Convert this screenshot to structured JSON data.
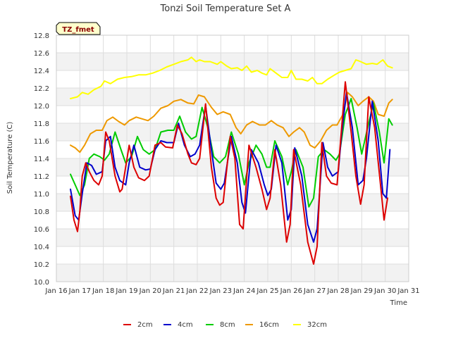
{
  "chart_data": {
    "type": "line",
    "title": "Tonzi Soil Temperature Set A",
    "xlabel": "Time",
    "ylabel": "Soil Temperature (C)",
    "annotation": "TZ_fmet",
    "xlim": [
      16,
      31
    ],
    "ylim": [
      10.0,
      12.8
    ],
    "x_ticks": [
      {
        "value": 16,
        "label": "Jan 16"
      },
      {
        "value": 17,
        "label": "Jan 17"
      },
      {
        "value": 18,
        "label": "Jan 18"
      },
      {
        "value": 19,
        "label": "Jan 19"
      },
      {
        "value": 20,
        "label": "Jan 20"
      },
      {
        "value": 21,
        "label": "Jan 21"
      },
      {
        "value": 22,
        "label": "Jan 22"
      },
      {
        "value": 23,
        "label": "Jan 23"
      },
      {
        "value": 24,
        "label": "Jan 24"
      },
      {
        "value": 25,
        "label": "Jan 25"
      },
      {
        "value": 26,
        "label": "Jan 26"
      },
      {
        "value": 27,
        "label": "Jan 27"
      },
      {
        "value": 28,
        "label": "Jan 28"
      },
      {
        "value": 29,
        "label": "Jan 29"
      },
      {
        "value": 30,
        "label": "Jan 30"
      },
      {
        "value": 31,
        "label": "Jan 31"
      }
    ],
    "y_ticks": [
      10.0,
      10.2,
      10.4,
      10.6,
      10.8,
      11.0,
      11.2,
      11.4,
      11.6,
      11.8,
      12.0,
      12.2,
      12.4,
      12.6,
      12.8
    ],
    "y_tick_labels": [
      "10.0",
      "10.2",
      "10.4",
      "10.6",
      "10.8",
      "11.0",
      "11.2",
      "11.4",
      "11.6",
      "11.8",
      "12.0",
      "12.2",
      "12.4",
      "12.6",
      "12.8"
    ],
    "series": [
      {
        "name": "2cm",
        "color": "#dd0000",
        "x": [
          16.6,
          16.75,
          16.9,
          17.0,
          17.1,
          17.25,
          17.4,
          17.6,
          17.8,
          17.95,
          18.1,
          18.25,
          18.5,
          18.7,
          18.8,
          18.95,
          19.1,
          19.3,
          19.5,
          19.75,
          19.95,
          20.2,
          20.45,
          20.65,
          20.95,
          21.15,
          21.35,
          21.6,
          21.75,
          21.95,
          22.1,
          22.35,
          22.6,
          22.8,
          22.95,
          23.1,
          23.4,
          23.6,
          23.8,
          23.95,
          24.2,
          24.5,
          24.75,
          24.95,
          25.1,
          25.3,
          25.55,
          25.8,
          25.95,
          26.1,
          26.4,
          26.7,
          26.95,
          27.1,
          27.3,
          27.5,
          27.7,
          27.95,
          28.1,
          28.3,
          28.55,
          28.75,
          28.95,
          29.1,
          29.3,
          29.55,
          29.8,
          29.95,
          30.1
        ],
        "values": [
          10.97,
          10.7,
          10.57,
          10.8,
          11.2,
          11.35,
          11.25,
          11.15,
          11.1,
          11.2,
          11.7,
          11.6,
          11.2,
          11.02,
          11.05,
          11.3,
          11.55,
          11.3,
          11.18,
          11.15,
          11.2,
          11.55,
          11.58,
          11.53,
          11.52,
          11.78,
          11.68,
          11.45,
          11.35,
          11.33,
          11.4,
          12.02,
          11.3,
          10.95,
          10.87,
          10.9,
          11.65,
          11.4,
          10.65,
          10.6,
          11.55,
          11.3,
          11.05,
          10.82,
          10.95,
          11.5,
          11.1,
          10.45,
          10.65,
          11.5,
          11.1,
          10.45,
          10.2,
          10.4,
          11.58,
          11.2,
          11.12,
          11.1,
          11.6,
          12.27,
          11.7,
          11.2,
          10.88,
          11.1,
          12.1,
          11.75,
          11.1,
          10.7,
          10.95
        ]
      },
      {
        "name": "4cm",
        "color": "#0000cc",
        "x": [
          16.6,
          16.8,
          16.95,
          17.1,
          17.3,
          17.5,
          17.7,
          17.95,
          18.1,
          18.3,
          18.5,
          18.7,
          18.95,
          19.1,
          19.3,
          19.55,
          19.8,
          20.0,
          20.2,
          20.45,
          20.7,
          21.0,
          21.2,
          21.45,
          21.7,
          21.9,
          22.1,
          22.35,
          22.6,
          22.8,
          23.0,
          23.15,
          23.45,
          23.7,
          23.9,
          24.05,
          24.3,
          24.6,
          24.85,
          25.0,
          25.15,
          25.35,
          25.6,
          25.85,
          26.0,
          26.15,
          26.45,
          26.7,
          26.95,
          27.1,
          27.35,
          27.55,
          27.75,
          28.0,
          28.15,
          28.35,
          28.6,
          28.85,
          29.05,
          29.2,
          29.45,
          29.7,
          29.9,
          30.05,
          30.2
        ],
        "values": [
          11.05,
          10.75,
          10.7,
          11.0,
          11.35,
          11.32,
          11.22,
          11.25,
          11.6,
          11.65,
          11.3,
          11.15,
          11.1,
          11.35,
          11.55,
          11.3,
          11.27,
          11.28,
          11.5,
          11.6,
          11.58,
          11.58,
          11.8,
          11.55,
          11.42,
          11.45,
          11.55,
          12.0,
          11.5,
          11.12,
          11.05,
          11.12,
          11.65,
          11.35,
          10.9,
          10.78,
          11.5,
          11.35,
          11.1,
          10.98,
          11.05,
          11.55,
          11.35,
          10.7,
          10.82,
          11.52,
          11.2,
          10.65,
          10.45,
          10.6,
          11.58,
          11.3,
          11.2,
          11.25,
          11.7,
          12.15,
          11.75,
          11.1,
          11.15,
          11.4,
          12.05,
          11.6,
          11.0,
          10.95,
          11.5
        ]
      },
      {
        "name": "8cm",
        "color": "#00cc00",
        "x": [
          16.6,
          16.8,
          17.0,
          17.2,
          17.4,
          17.6,
          17.85,
          18.05,
          18.25,
          18.5,
          18.75,
          18.95,
          19.2,
          19.45,
          19.7,
          19.95,
          20.2,
          20.45,
          20.75,
          21.0,
          21.25,
          21.5,
          21.75,
          21.95,
          22.2,
          22.45,
          22.7,
          22.95,
          23.2,
          23.45,
          23.75,
          24.0,
          24.2,
          24.5,
          24.75,
          24.95,
          25.1,
          25.3,
          25.6,
          25.85,
          26.0,
          26.2,
          26.5,
          26.75,
          26.95,
          27.15,
          27.4,
          27.65,
          27.9,
          28.05,
          28.3,
          28.55,
          28.8,
          29.0,
          29.25,
          29.5,
          29.75,
          29.95,
          30.15,
          30.3
        ],
        "values": [
          11.22,
          11.1,
          10.98,
          11.1,
          11.4,
          11.45,
          11.42,
          11.38,
          11.45,
          11.7,
          11.5,
          11.35,
          11.42,
          11.65,
          11.5,
          11.45,
          11.5,
          11.7,
          11.72,
          11.72,
          11.88,
          11.7,
          11.62,
          11.65,
          11.98,
          11.75,
          11.42,
          11.35,
          11.42,
          11.7,
          11.45,
          11.1,
          11.35,
          11.55,
          11.45,
          11.3,
          11.3,
          11.6,
          11.42,
          11.1,
          11.25,
          11.5,
          11.3,
          10.85,
          10.95,
          11.42,
          11.5,
          11.45,
          11.38,
          11.45,
          11.9,
          12.08,
          11.75,
          11.45,
          11.75,
          12.03,
          11.7,
          11.35,
          11.85,
          11.78
        ]
      },
      {
        "name": "16cm",
        "color": "#ee9900",
        "x": [
          16.6,
          16.8,
          17.0,
          17.2,
          17.45,
          17.7,
          17.95,
          18.15,
          18.4,
          18.65,
          18.9,
          19.1,
          19.4,
          19.65,
          19.9,
          20.15,
          20.45,
          20.75,
          21.0,
          21.3,
          21.6,
          21.85,
          22.05,
          22.3,
          22.6,
          22.85,
          23.1,
          23.4,
          23.65,
          23.85,
          24.1,
          24.35,
          24.65,
          24.9,
          25.15,
          25.4,
          25.65,
          25.9,
          26.1,
          26.35,
          26.55,
          26.8,
          27.0,
          27.25,
          27.5,
          27.75,
          27.95,
          28.2,
          28.4,
          28.6,
          28.85,
          29.05,
          29.3,
          29.5,
          29.7,
          29.95,
          30.15,
          30.3
        ],
        "values": [
          11.55,
          11.52,
          11.47,
          11.55,
          11.68,
          11.72,
          11.72,
          11.83,
          11.87,
          11.82,
          11.78,
          11.83,
          11.87,
          11.85,
          11.83,
          11.88,
          11.97,
          12.0,
          12.05,
          12.07,
          12.03,
          12.02,
          12.12,
          12.1,
          11.98,
          11.9,
          11.93,
          11.9,
          11.75,
          11.68,
          11.78,
          11.82,
          11.78,
          11.78,
          11.83,
          11.78,
          11.75,
          11.65,
          11.7,
          11.75,
          11.7,
          11.55,
          11.52,
          11.6,
          11.72,
          11.78,
          11.78,
          11.9,
          12.15,
          12.1,
          12.0,
          12.05,
          12.1,
          12.05,
          11.9,
          11.88,
          12.03,
          12.07
        ]
      },
      {
        "name": "32cm",
        "color": "#ffff00",
        "x": [
          16.6,
          16.9,
          17.1,
          17.35,
          17.6,
          17.9,
          18.05,
          18.3,
          18.6,
          18.9,
          19.2,
          19.5,
          19.8,
          20.1,
          20.4,
          20.7,
          21.0,
          21.3,
          21.6,
          21.75,
          21.95,
          22.1,
          22.3,
          22.55,
          22.85,
          23.0,
          23.25,
          23.45,
          23.7,
          23.9,
          24.1,
          24.3,
          24.55,
          24.75,
          24.95,
          25.1,
          25.35,
          25.6,
          25.85,
          26.0,
          26.2,
          26.45,
          26.7,
          26.9,
          27.1,
          27.3,
          27.55,
          27.85,
          28.05,
          28.3,
          28.55,
          28.75,
          28.95,
          29.2,
          29.45,
          29.65,
          29.9,
          30.1,
          30.3
        ],
        "values": [
          12.08,
          12.1,
          12.15,
          12.13,
          12.18,
          12.22,
          12.28,
          12.25,
          12.3,
          12.32,
          12.33,
          12.35,
          12.35,
          12.37,
          12.4,
          12.44,
          12.47,
          12.5,
          12.52,
          12.55,
          12.5,
          12.52,
          12.5,
          12.5,
          12.47,
          12.5,
          12.45,
          12.42,
          12.43,
          12.4,
          12.45,
          12.38,
          12.4,
          12.37,
          12.35,
          12.42,
          12.37,
          12.32,
          12.32,
          12.4,
          12.3,
          12.3,
          12.28,
          12.32,
          12.25,
          12.25,
          12.3,
          12.35,
          12.38,
          12.4,
          12.42,
          12.52,
          12.5,
          12.47,
          12.48,
          12.47,
          12.52,
          12.45,
          12.43
        ]
      }
    ]
  }
}
